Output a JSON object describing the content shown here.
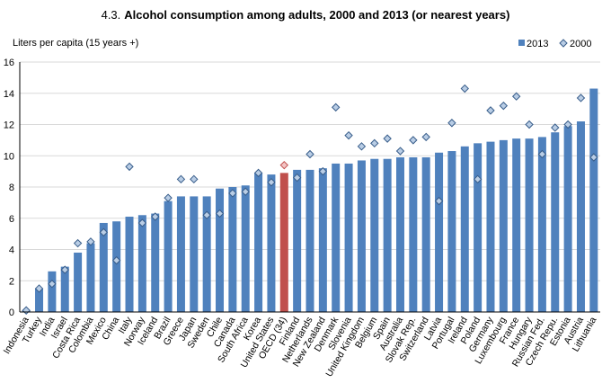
{
  "title_number": "4.3.",
  "title_text": "Alcohol consumption among adults, 2000 and 2013 (or nearest years)",
  "chart_data": {
    "type": "bar",
    "ylabel": "Liters per capita (15 years +)",
    "xlabel": "",
    "ylim": [
      0,
      16
    ],
    "yticks": [
      0,
      2,
      4,
      6,
      8,
      10,
      12,
      14,
      16
    ],
    "grid": true,
    "legend_position": "top-right",
    "highlight_category": "OECD (34)",
    "colors": {
      "bar": "#4f81bd",
      "highlight": "#c0504d",
      "marker": "#b9cde5",
      "marker_stroke": "#385d8a",
      "marker_highlight": "#f2c4c4",
      "marker_highlight_stroke": "#c0504d"
    },
    "categories": [
      "Indonesia",
      "Turkey",
      "India",
      "Israel",
      "Costa Rica",
      "Colombia",
      "Mexico",
      "China",
      "Italy",
      "Norway",
      "Iceland",
      "Brazil",
      "Greece",
      "Japan",
      "Sweden",
      "Chile",
      "Canada",
      "South Africa",
      "Korea",
      "United States",
      "OECD (34)",
      "Finland",
      "Netherlands",
      "New Zealand",
      "Denmark",
      "Slovenia",
      "United Kingdom",
      "Belgium",
      "Spain",
      "Australia",
      "Slovak Rep.",
      "Switzerland",
      "Latvia",
      "Portugal",
      "Ireland",
      "Poland",
      "Germany",
      "Luxembourg",
      "France",
      "Hungary",
      "Russian Fed.",
      "Czech Repu.",
      "Estonia",
      "Austria",
      "Lithuania"
    ],
    "series": [
      {
        "name": "2013",
        "kind": "bar",
        "values": [
          0.1,
          1.5,
          2.6,
          2.9,
          3.8,
          4.4,
          5.7,
          5.8,
          6.1,
          6.2,
          6.3,
          7.1,
          7.4,
          7.4,
          7.4,
          7.9,
          8.0,
          8.1,
          8.9,
          8.8,
          8.9,
          9.1,
          9.1,
          9.2,
          9.5,
          9.5,
          9.7,
          9.8,
          9.8,
          9.9,
          9.9,
          9.9,
          10.2,
          10.3,
          10.6,
          10.8,
          10.9,
          11.0,
          11.1,
          11.1,
          11.2,
          11.5,
          11.9,
          12.2,
          14.3
        ]
      },
      {
        "name": "2000",
        "kind": "marker",
        "values": [
          0.1,
          1.5,
          1.8,
          2.7,
          4.4,
          4.5,
          5.1,
          3.3,
          9.3,
          5.7,
          6.1,
          7.3,
          8.5,
          8.5,
          6.2,
          6.3,
          7.6,
          7.7,
          8.9,
          8.3,
          9.4,
          8.6,
          10.1,
          9.0,
          13.1,
          11.3,
          10.6,
          10.8,
          11.1,
          10.3,
          11.0,
          11.2,
          7.1,
          12.1,
          14.3,
          8.5,
          12.9,
          13.2,
          13.8,
          12.0,
          10.1,
          11.8,
          12.0,
          13.7,
          9.9
        ]
      }
    ]
  }
}
